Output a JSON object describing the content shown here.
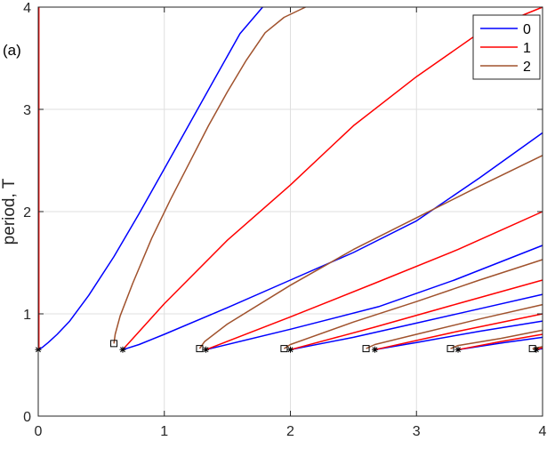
{
  "chart_data": {
    "type": "line",
    "panel_label": "(a)",
    "xlabel": "",
    "ylabel": "period, T",
    "xlim": [
      0,
      4
    ],
    "ylim": [
      0,
      4
    ],
    "xticks": [
      "0",
      "1",
      "2",
      "3",
      "4"
    ],
    "yticks": [
      "0",
      "1",
      "2",
      "3",
      "4"
    ],
    "grid": true,
    "legend_position": "top-right",
    "colors": {
      "0": "#0000ff",
      "1": "#ff0000",
      "2": "#a0522d"
    },
    "series": [
      {
        "name": "0",
        "color": "#0000ff",
        "curves": [
          {
            "x": [
              0,
              0.03,
              0.08,
              0.15,
              0.25,
              0.4,
              0.6,
              0.8,
              1.0,
              1.2,
              1.4,
              1.6,
              1.78
            ],
            "y": [
              0.65,
              0.67,
              0.72,
              0.8,
              0.93,
              1.18,
              1.56,
              1.98,
              2.42,
              2.86,
              3.3,
              3.74,
              4.0
            ]
          },
          {
            "x": [
              0.67,
              0.8,
              1.0,
              1.5,
              2.0,
              2.5,
              3.0,
              3.5,
              4.0
            ],
            "y": [
              0.65,
              0.7,
              0.8,
              1.06,
              1.33,
              1.6,
              1.91,
              2.33,
              2.77
            ]
          },
          {
            "x": [
              1.33,
              2.0,
              2.7,
              3.3,
              4.0
            ],
            "y": [
              0.65,
              0.85,
              1.07,
              1.33,
              1.67
            ]
          },
          {
            "x": [
              2.0,
              2.5,
              3.0,
              3.5,
              4.0
            ],
            "y": [
              0.65,
              0.77,
              0.91,
              1.05,
              1.19
            ]
          },
          {
            "x": [
              2.67,
              3.0,
              3.5,
              4.0
            ],
            "y": [
              0.65,
              0.72,
              0.83,
              0.93
            ]
          },
          {
            "x": [
              3.33,
              3.7,
              4.0
            ],
            "y": [
              0.65,
              0.72,
              0.77
            ]
          },
          {
            "x": [
              3.95,
              4.0
            ],
            "y": [
              0.65,
              0.66
            ]
          }
        ]
      },
      {
        "name": "1",
        "color": "#ff0000",
        "curves": [
          {
            "x": [
              0.005,
              0.005
            ],
            "y": [
              0.65,
              4.0
            ]
          },
          {
            "x": [
              0.67,
              1.0,
              1.5,
              2.0,
              2.5,
              3.0,
              3.5,
              4.0
            ],
            "y": [
              0.65,
              1.1,
              1.72,
              2.26,
              2.84,
              3.32,
              3.75,
              4.0
            ]
          },
          {
            "x": [
              1.33,
              2.0,
              2.67,
              3.33,
              4.0
            ],
            "y": [
              0.65,
              0.97,
              1.3,
              1.63,
              2.0
            ]
          },
          {
            "x": [
              2.0,
              2.67,
              3.33,
              4.0
            ],
            "y": [
              0.65,
              0.87,
              1.1,
              1.33
            ]
          },
          {
            "x": [
              2.67,
              3.33,
              4.0
            ],
            "y": [
              0.65,
              0.83,
              1.0
            ]
          },
          {
            "x": [
              3.33,
              3.67,
              4.0
            ],
            "y": [
              0.65,
              0.73,
              0.8
            ]
          },
          {
            "x": [
              3.95,
              4.0
            ],
            "y": [
              0.65,
              0.67
            ]
          }
        ]
      },
      {
        "name": "2",
        "color": "#a0522d",
        "curves": [
          {
            "x": [
              0.6,
              0.61,
              0.65,
              0.75,
              0.9,
              1.05,
              1.2,
              1.35,
              1.5,
              1.65,
              1.8,
              1.95,
              2.12
            ],
            "y": [
              0.71,
              0.8,
              0.98,
              1.3,
              1.74,
              2.12,
              2.48,
              2.84,
              3.17,
              3.48,
              3.75,
              3.9,
              4.0
            ]
          },
          {
            "x": [
              1.28,
              1.32,
              1.5,
              2.0,
              2.5,
              3.0,
              3.5,
              4.0
            ],
            "y": [
              0.66,
              0.73,
              0.9,
              1.28,
              1.63,
              1.94,
              2.25,
              2.55
            ]
          },
          {
            "x": [
              1.95,
              2.0,
              2.5,
              3.0,
              3.5,
              4.0
            ],
            "y": [
              0.66,
              0.7,
              0.92,
              1.12,
              1.33,
              1.53
            ]
          },
          {
            "x": [
              2.6,
              2.67,
              3.0,
              3.5,
              4.0
            ],
            "y": [
              0.66,
              0.7,
              0.8,
              0.95,
              1.09
            ]
          },
          {
            "x": [
              3.27,
              3.33,
              3.67,
              4.0
            ],
            "y": [
              0.66,
              0.69,
              0.76,
              0.84
            ]
          },
          {
            "x": [
              3.92,
              4.0
            ],
            "y": [
              0.66,
              0.68
            ]
          }
        ]
      }
    ],
    "markers": {
      "star_color": "#000000",
      "star": [
        {
          "x": 0,
          "y": 0.65
        },
        {
          "x": 0.67,
          "y": 0.65
        },
        {
          "x": 1.33,
          "y": 0.65
        },
        {
          "x": 2.0,
          "y": 0.65
        },
        {
          "x": 2.67,
          "y": 0.65
        },
        {
          "x": 3.33,
          "y": 0.65
        },
        {
          "x": 3.95,
          "y": 0.65
        }
      ],
      "square": [
        {
          "x": 0.6,
          "y": 0.71
        },
        {
          "x": 1.28,
          "y": 0.66
        },
        {
          "x": 1.95,
          "y": 0.66
        },
        {
          "x": 2.6,
          "y": 0.66
        },
        {
          "x": 3.27,
          "y": 0.66
        },
        {
          "x": 3.92,
          "y": 0.66
        }
      ]
    }
  }
}
